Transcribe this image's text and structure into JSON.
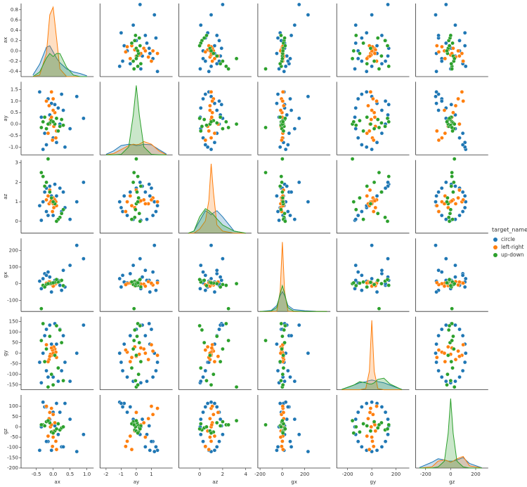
{
  "chart_data": {
    "type": "pairplot",
    "legend_title": "target_name",
    "variables": [
      {
        "name": "ax",
        "xlim": [
          -0.95,
          1.2
        ],
        "xticks": [
          -0.5,
          {
            "value": 0,
            "label": "0.0"
          },
          0.5,
          {
            "value": 1,
            "label": "1.0"
          }
        ],
        "ylim": [
          -0.5,
          0.92
        ],
        "yticks": [
          -0.4,
          -0.2,
          {
            "value": 0,
            "label": "0.0"
          },
          0.2,
          0.4,
          0.6,
          0.8
        ],
        "kde_x": [
          -0.6,
          -0.4,
          -0.2,
          -0.1,
          0,
          0.1,
          0.2,
          0.4,
          0.6,
          0.8,
          1.0
        ]
      },
      {
        "name": "ay",
        "xlim": [
          -2.4,
          2.4
        ],
        "xticks": [
          -2,
          -1,
          0,
          1
        ],
        "ylim": [
          -1.34,
          1.84
        ],
        "yticks": [
          {
            "value": -1,
            "label": "-1.0"
          },
          -0.5,
          {
            "value": 0,
            "label": "0.0"
          },
          0.5,
          {
            "value": 1,
            "label": "1.0"
          },
          1.5
        ],
        "kde_x": [
          -2,
          -1.5,
          -1,
          -0.5,
          -0.2,
          0,
          0.2,
          0.5,
          1,
          1.5,
          2
        ]
      },
      {
        "name": "az",
        "xlim": [
          -1.8,
          4.5
        ],
        "xticks": [
          0,
          2,
          4
        ],
        "ylim": [
          -0.61,
          3.14
        ],
        "yticks": [
          0,
          1,
          2,
          3
        ],
        "kde_x": [
          -1,
          -0.5,
          0,
          0.5,
          0.8,
          1,
          1.2,
          1.5,
          2,
          3,
          4
        ]
      },
      {
        "name": "gx",
        "xlim": [
          -220,
          430
        ],
        "xticks": [
          -200,
          0,
          200
        ],
        "ylim": [
          -167,
          272
        ],
        "yticks": [
          -100,
          0,
          100,
          200
        ],
        "kde_x": [
          -200,
          -100,
          -50,
          -20,
          0,
          20,
          50,
          100,
          200,
          300,
          400
        ]
      },
      {
        "name": "gy",
        "xlim": [
          -290,
          310
        ],
        "xticks": [
          -200,
          0,
          200
        ],
        "ylim": [
          -173,
          173
        ],
        "yticks": [
          -150,
          -100,
          -50,
          0,
          50,
          100,
          150
        ],
        "kde_x": [
          -250,
          -150,
          -100,
          -50,
          -20,
          0,
          20,
          50,
          100,
          150,
          250
        ]
      },
      {
        "name": "gz",
        "xlim": [
          -280,
          300
        ],
        "xticks": [
          -200,
          0,
          200
        ],
        "ylim": [
          -200,
          155
        ],
        "yticks": [
          -200,
          -150,
          -100,
          -50,
          0,
          50,
          100
        ],
        "kde_x": [
          -250,
          -150,
          -100,
          -50,
          -20,
          0,
          20,
          50,
          100,
          150,
          250
        ]
      }
    ],
    "series": [
      {
        "name": "circle",
        "color": "#1f77b4",
        "rows": [
          [
            0.05,
            0.85,
            1.9,
            20,
            140,
            5
          ],
          [
            -0.1,
            0.4,
            1.8,
            40,
            133,
            37
          ],
          [
            0.2,
            0.0,
            1.7,
            -10,
            113,
            71
          ],
          [
            -0.25,
            -0.4,
            1.5,
            60,
            83,
            97
          ],
          [
            0.1,
            -0.8,
            1.3,
            10,
            43,
            114
          ],
          [
            -0.3,
            -1.1,
            1.0,
            30,
            0,
            120
          ],
          [
            0.35,
            -1.0,
            0.7,
            -20,
            -43,
            114
          ],
          [
            -0.2,
            -0.9,
            0.5,
            50,
            -83,
            97
          ],
          [
            0.0,
            -0.6,
            0.3,
            5,
            -113,
            71
          ],
          [
            0.5,
            -0.2,
            0.1,
            110,
            -133,
            37
          ],
          [
            -0.35,
            0.3,
            0.05,
            -30,
            -140,
            0
          ],
          [
            0.15,
            0.7,
            0.1,
            20,
            -133,
            -37
          ],
          [
            -0.15,
            1.1,
            0.3,
            70,
            -113,
            -71
          ],
          [
            0.25,
            1.3,
            0.5,
            -40,
            -83,
            -97
          ],
          [
            -0.4,
            1.4,
            0.8,
            15,
            -43,
            -114
          ],
          [
            0.7,
            1.2,
            1.0,
            230,
            0,
            -120
          ],
          [
            -0.05,
            0.9,
            1.3,
            -50,
            43,
            -114
          ],
          [
            0.3,
            0.6,
            1.5,
            80,
            83,
            -97
          ],
          [
            -0.2,
            1.0,
            1.7,
            0,
            113,
            -71
          ],
          [
            0.9,
            0.25,
            2.0,
            150,
            133,
            -37
          ]
        ],
        "kde": [
          [
            0.1,
            0.8,
            1.9,
            2.0,
            1.6,
            1.2,
            0.9,
            0.5,
            0.3,
            0.2,
            0.05
          ],
          [
            0.02,
            0.15,
            0.35,
            0.4,
            0.38,
            0.35,
            0.36,
            0.4,
            0.38,
            0.2,
            0.03
          ],
          [
            0,
            0.05,
            0.3,
            0.55,
            0.5,
            0.45,
            0.5,
            0.55,
            0.4,
            0.05,
            0
          ],
          [
            0,
            0.05,
            0.3,
            0.8,
            1.0,
            0.8,
            0.3,
            0.1,
            0.04,
            0.01,
            0
          ],
          [
            0.01,
            0.2,
            0.3,
            0.35,
            0.4,
            0.42,
            0.4,
            0.35,
            0.3,
            0.2,
            0.01
          ],
          [
            0.02,
            0.25,
            0.4,
            0.35,
            0.3,
            0.3,
            0.3,
            0.35,
            0.45,
            0.2,
            0.01
          ]
        ]
      },
      {
        "name": "left-right",
        "color": "#ff7f0e",
        "rows": [
          [
            -0.05,
            1.4,
            1.0,
            5,
            -10,
            90
          ],
          [
            0.0,
            1.1,
            1.2,
            -8,
            10,
            60
          ],
          [
            -0.12,
            0.8,
            0.9,
            12,
            -30,
            40
          ],
          [
            0.05,
            0.5,
            1.1,
            -3,
            20,
            20
          ],
          [
            -0.08,
            0.2,
            1.0,
            8,
            -5,
            0
          ],
          [
            0.02,
            -0.1,
            0.7,
            -12,
            30,
            -20
          ],
          [
            -0.15,
            -0.4,
            1.3,
            4,
            -40,
            -45
          ],
          [
            0.08,
            -0.6,
            1.0,
            0,
            5,
            -70
          ],
          [
            -0.02,
            -0.7,
            0.5,
            -6,
            15,
            -95
          ],
          [
            -0.1,
            0.0,
            1.6,
            10,
            -15,
            70
          ],
          [
            0.0,
            0.6,
            0.9,
            -15,
            0,
            -50
          ],
          [
            -0.2,
            1.0,
            1.1,
            3,
            40,
            100
          ],
          [
            0.1,
            -0.3,
            0.8,
            6,
            -20,
            -110
          ],
          [
            -0.05,
            0.3,
            1.05,
            -2,
            25,
            10
          ]
        ],
        "kde": [
          [
            0,
            0.1,
            1.5,
            4.0,
            4.5,
            2.5,
            0.5,
            0,
            0,
            0,
            0
          ],
          [
            0,
            0.05,
            0.2,
            0.35,
            0.4,
            0.38,
            0.4,
            0.5,
            0.4,
            0.15,
            0
          ],
          [
            0,
            0,
            0.1,
            0.3,
            0.8,
            1.7,
            1.0,
            0.2,
            0.05,
            0,
            0
          ],
          [
            0,
            0,
            0.01,
            1.0,
            3.5,
            1.0,
            0.01,
            0,
            0,
            0,
            0
          ],
          [
            0,
            0,
            0,
            0.05,
            0.8,
            3.0,
            0.8,
            0.05,
            0,
            0,
            0
          ],
          [
            0,
            0.05,
            0.3,
            0.35,
            0.3,
            0.25,
            0.3,
            0.4,
            0.5,
            0.1,
            0
          ]
        ]
      },
      {
        "name": "up-down",
        "color": "#2ca02c",
        "rows": [
          [
            -0.3,
            0.1,
            2.3,
            -10,
            140,
            10
          ],
          [
            0.2,
            -0.1,
            0.2,
            15,
            110,
            -15
          ],
          [
            -0.1,
            0.05,
            1.5,
            0,
            80,
            20
          ],
          [
            0.25,
            0.2,
            0.4,
            20,
            50,
            -5
          ],
          [
            -0.2,
            -0.2,
            2.0,
            -5,
            20,
            25
          ],
          [
            0.05,
            0.0,
            0.9,
            8,
            -10,
            -20
          ],
          [
            -0.25,
            0.3,
            1.8,
            -20,
            -40,
            5
          ],
          [
            0.15,
            -0.3,
            0.1,
            10,
            -70,
            15
          ],
          [
            -0.05,
            0.15,
            1.2,
            3,
            -100,
            -25
          ],
          [
            0.3,
            -0.05,
            0.6,
            -12,
            -130,
            0
          ],
          [
            -0.15,
            0.0,
            3.2,
            0,
            -160,
            30
          ],
          [
            0.1,
            0.25,
            0.0,
            25,
            130,
            -10
          ],
          [
            -0.35,
            -0.15,
            2.5,
            -150,
            60,
            10
          ],
          [
            0.0,
            0.1,
            1.0,
            5,
            -150,
            -30
          ]
        ],
        "kde": [
          [
            0,
            0.3,
            1.2,
            1.5,
            1.3,
            1.5,
            1.5,
            0.6,
            0.1,
            0,
            0
          ],
          [
            0,
            0,
            0.02,
            0.3,
            1.5,
            2.6,
            1.5,
            0.3,
            0.02,
            0,
            0
          ],
          [
            0,
            0.05,
            0.4,
            0.6,
            0.55,
            0.5,
            0.45,
            0.35,
            0.2,
            0.05,
            0
          ],
          [
            0,
            0.02,
            0.2,
            0.9,
            1.3,
            0.9,
            0.2,
            0.02,
            0,
            0,
            0
          ],
          [
            0.01,
            0.2,
            0.35,
            0.3,
            0.25,
            0.25,
            0.3,
            0.45,
            0.5,
            0.25,
            0
          ],
          [
            0,
            0,
            0.05,
            0.3,
            1.5,
            3.0,
            1.5,
            0.3,
            0.05,
            0,
            0
          ]
        ]
      }
    ]
  }
}
